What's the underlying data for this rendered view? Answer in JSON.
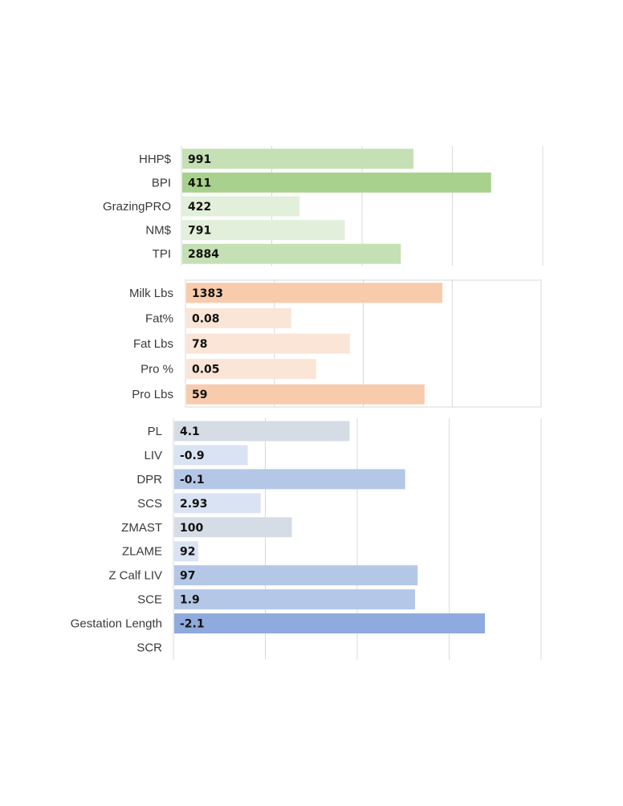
{
  "chart_data": [
    {
      "type": "bar",
      "orientation": "horizontal",
      "grid": true,
      "framed": false,
      "categories": [
        "HHP$",
        "BPI",
        "GrazingPRO",
        "NM$",
        "TPI"
      ],
      "values": [
        991,
        411,
        422,
        791,
        2884
      ],
      "bar_fraction": [
        0.64,
        0.855,
        0.325,
        0.45,
        0.605
      ],
      "colors": [
        "#c5e0b4",
        "#a9d18e",
        "#e2efda",
        "#e2efda",
        "#c5e0b4"
      ]
    },
    {
      "type": "bar",
      "orientation": "horizontal",
      "grid": true,
      "framed": true,
      "categories": [
        "Milk Lbs",
        "Fat%",
        "Fat Lbs",
        "Pro %",
        "Pro Lbs"
      ],
      "values": [
        1383,
        0.08,
        78,
        0.05,
        59
      ],
      "bar_fraction": [
        0.72,
        0.295,
        0.46,
        0.365,
        0.67
      ],
      "colors": [
        "#f8cbad",
        "#fbe5d6",
        "#fbe5d6",
        "#fbe5d6",
        "#f8cbad"
      ]
    },
    {
      "type": "bar",
      "orientation": "horizontal",
      "grid": true,
      "framed": false,
      "categories": [
        "PL",
        "LIV",
        "DPR",
        "SCS",
        "ZMAST",
        "ZLAME",
        "Z Calf LIV",
        "SCE",
        "Gestation Length",
        "SCR"
      ],
      "values": [
        4.1,
        -0.9,
        -0.1,
        2.93,
        100,
        92,
        97,
        1.9,
        -2.1,
        null
      ],
      "bar_fraction": [
        0.477,
        0.2,
        0.628,
        0.235,
        0.32,
        0.0,
        0.662,
        0.655,
        0.845,
        0.0
      ],
      "colors": [
        "#d6dce5",
        "#dae3f3",
        "#b4c7e7",
        "#dae3f3",
        "#d6dce5",
        "#dae3f3",
        "#b4c7e7",
        "#b4c7e7",
        "#8faadc",
        "#dae3f3"
      ]
    }
  ]
}
